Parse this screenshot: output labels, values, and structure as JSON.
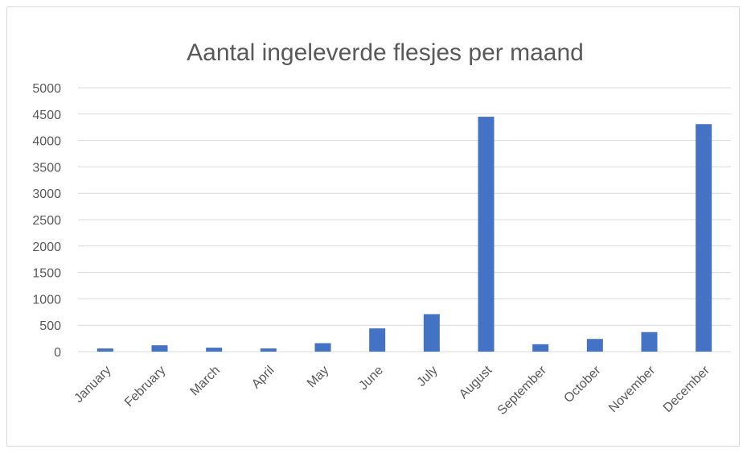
{
  "chart_data": {
    "type": "bar",
    "title": "Aantal ingeleverde flesjes per maand",
    "xlabel": "",
    "ylabel": "",
    "categories": [
      "January",
      "February",
      "March",
      "April",
      "May",
      "June",
      "July",
      "August",
      "September",
      "October",
      "November",
      "December"
    ],
    "values": [
      60,
      120,
      75,
      60,
      160,
      440,
      710,
      4450,
      140,
      240,
      370,
      4310
    ],
    "ylim": [
      0,
      5000
    ],
    "yticks": [
      "0",
      "500",
      "1000",
      "1500",
      "2000",
      "2500",
      "3000",
      "3500",
      "4000",
      "4500",
      "5000"
    ],
    "grid": true,
    "legend": "none",
    "colors": {
      "bar": "#4472c4",
      "grid": "#d9d9d9",
      "text": "#595959"
    }
  }
}
